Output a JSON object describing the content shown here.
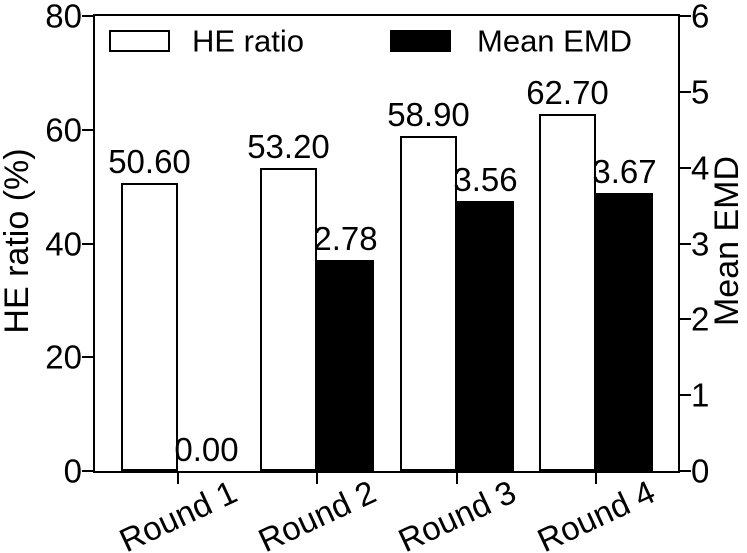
{
  "figure": {
    "background": "#ffffff",
    "foreground": "#000000"
  },
  "chart_data": {
    "type": "bar",
    "categories": [
      "Round 1",
      "Round 2",
      "Round 3",
      "Round 4"
    ],
    "series": [
      {
        "name": "HE ratio",
        "axis": "left",
        "values": [
          50.6,
          53.2,
          58.9,
          62.7
        ],
        "value_labels": [
          "50.60",
          "53.20",
          "58.90",
          "62.70"
        ],
        "fill": "#ffffff",
        "edge": "#000000"
      },
      {
        "name": "Mean EMD",
        "axis": "right",
        "values": [
          0.0,
          2.78,
          3.56,
          3.67
        ],
        "value_labels": [
          "0.00",
          "2.78",
          "3.56",
          "3.67"
        ],
        "fill": "#000000",
        "edge": "#000000"
      }
    ],
    "left_axis": {
      "label": "HE ratio (%)",
      "range": [
        0,
        80
      ],
      "ticks": [
        0,
        20,
        40,
        60,
        80
      ],
      "tick_labels": [
        "0",
        "20",
        "40",
        "60",
        "80"
      ]
    },
    "right_axis": {
      "label": "Mean EMD",
      "range": [
        0,
        6
      ],
      "ticks": [
        0,
        1,
        2,
        3,
        4,
        5,
        6
      ],
      "tick_labels": [
        "0",
        "1",
        "2",
        "3",
        "4",
        "5",
        "6"
      ]
    },
    "x_axis": {
      "tick_labels": [
        "Round 1",
        "Round 2",
        "Round 3",
        "Round 4"
      ],
      "label_rotation_deg": 25
    },
    "legend": {
      "position": "top-inside",
      "frame": false,
      "entries": [
        {
          "label": "HE ratio",
          "swatch": "white"
        },
        {
          "label": "Mean EMD",
          "swatch": "black"
        }
      ]
    },
    "grid": false,
    "title": ""
  }
}
